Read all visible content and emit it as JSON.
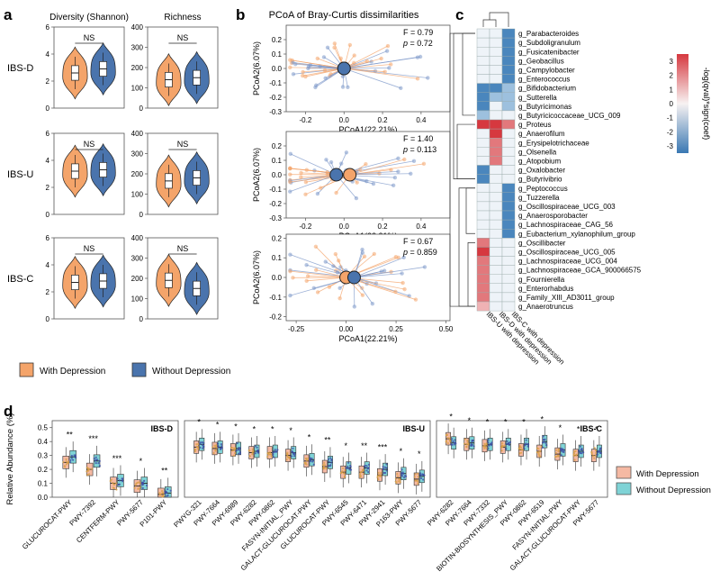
{
  "colors": {
    "dep_fill": "#f4a46a",
    "dep_dark": "#e07b39",
    "nodep_fill": "#4a74ad",
    "nodep_dark": "#2a5590",
    "d_dep": "#f5b9a3",
    "d_nodep": "#7fd3d6",
    "heat_pos": "#d94e52",
    "heat_neg": "#4b86bd",
    "heat_light": "#f2c9c9",
    "heat_blue_light": "#c3d8ea"
  },
  "panel_labels": {
    "a": "a",
    "b": "b",
    "c": "c",
    "d": "d"
  },
  "legend_a": {
    "with": "With Depression",
    "without": "Without Depression"
  },
  "legend_d": {
    "with": "With Depression",
    "without": "Without Depression"
  },
  "chart_data": [
    {
      "id": "a",
      "type": "violin",
      "columns": [
        "Diversity (Shannon)",
        "Richness"
      ],
      "rows": [
        "IBS-D",
        "IBS-U",
        "IBS-C"
      ],
      "sig_label": "NS",
      "shannon": {
        "yticks": [
          0,
          2,
          4,
          6
        ],
        "ylim": [
          0,
          6
        ],
        "median": {
          "IBS-D": [
            2.6,
            2.9
          ],
          "IBS-U": [
            3.2,
            3.3
          ],
          "IBS-C": [
            2.7,
            2.8
          ]
        }
      },
      "richness": {
        "yticks": [
          0,
          100,
          200,
          300,
          400
        ],
        "ylim": [
          0,
          400
        ],
        "median": {
          "IBS-D": [
            140,
            150
          ],
          "IBS-U": [
            165,
            180
          ],
          "IBS-C": [
            190,
            150
          ]
        }
      }
    },
    {
      "id": "b",
      "type": "scatter",
      "title": "PCoA of Bray-Curtis dissimilarities",
      "xlabel": "PCoA1(22.21%)",
      "ylabel": "PCoA2(6.07%)",
      "subplots": [
        {
          "F": "F = 0.79",
          "p": "= 0.72",
          "xlim": [
            -0.3,
            0.55
          ],
          "ylim": [
            -0.3,
            0.3
          ],
          "xticks": [
            "-0.2",
            "0.0",
            "0.2",
            "0.4"
          ],
          "yticks": [
            "0.2",
            "0.1",
            "0.0",
            "-0.1",
            "-0.2",
            "-0.3"
          ],
          "centroids": {
            "dep": [
              0.0,
              0.0
            ],
            "nodep": [
              0.0,
              0.0
            ]
          }
        },
        {
          "F": "F = 1.40",
          "p": "= 0.113",
          "xlim": [
            -0.3,
            0.55
          ],
          "ylim": [
            -0.3,
            0.3
          ],
          "xticks": [
            "-0.2",
            "0.0",
            "0.2",
            "0.4"
          ],
          "yticks": [
            "0.2",
            "0.1",
            "0.0",
            "-0.1",
            "-0.2",
            "-0.3"
          ],
          "centroids": {
            "dep": [
              0.03,
              0.0
            ],
            "nodep": [
              -0.04,
              0.0
            ]
          }
        },
        {
          "F": "F = 0.67",
          "p": "= 0.859",
          "xlim": [
            -0.3,
            0.52
          ],
          "ylim": [
            -0.22,
            0.22
          ],
          "xticks": [
            "-0.25",
            "0.00",
            "0.25",
            "0.50"
          ],
          "yticks": [
            "0.2",
            "0.1",
            "0.0",
            "-0.1",
            "-0.2"
          ],
          "centroids": {
            "dep": [
              0.0,
              0.0
            ],
            "nodep": [
              0.04,
              0.0
            ]
          }
        }
      ]
    },
    {
      "id": "c",
      "type": "heatmap",
      "columns": [
        "IBS-U with depression",
        "IBS-D with depression",
        "IBS-C with depression"
      ],
      "rows": [
        "g_Parabacteroides",
        "g_Subdoligranulum",
        "g_Fusicatenibacter",
        "g_Geobacillus",
        "g_Campylobacter",
        "g_Enterococcus",
        "g_Bifidobacterium",
        "g_Sutterella",
        "g_Butyricimonas",
        "g_Butyricicoccaceae_UCG_009",
        "g_Proteus",
        "g_Anaerofilum",
        "g_Erysipelotrichaceae",
        "g_Olsenella",
        "g_Atopobium",
        "g_Oxalobacter",
        "g_Butyrivibrio",
        "g_Peptococcus",
        "g_Tuzzerella",
        "g_Oscillospiraceae_UCG_003",
        "g_Anaerosporobacter",
        "g_Lachnospiraceae_CAG_56",
        "g_Eubacterium_xylanophilum_group",
        "g_Oscillibacter",
        "g_Oscillospiraceae_UCG_005",
        "g_Lachnospiraceae_UCG_004",
        "g_Lachnospiraceae_GCA_900066575",
        "g_Fournierella",
        "g_Enterorhabdus",
        "g_Family_XIII_AD3011_group",
        "g_Anaerotruncus"
      ],
      "values": [
        [
          0,
          0,
          -2
        ],
        [
          0,
          0,
          -2
        ],
        [
          0,
          0,
          -2
        ],
        [
          0,
          0,
          -2
        ],
        [
          0,
          0,
          -2
        ],
        [
          0,
          0,
          -2
        ],
        [
          -2,
          -2,
          -1
        ],
        [
          -2,
          -1,
          -1
        ],
        [
          -2,
          0,
          -1
        ],
        [
          -1,
          0,
          0
        ],
        [
          3,
          3,
          2
        ],
        [
          0,
          3,
          0
        ],
        [
          0,
          2,
          0
        ],
        [
          0,
          2,
          0
        ],
        [
          0,
          2,
          0
        ],
        [
          -2,
          0,
          0
        ],
        [
          -2,
          0,
          0
        ],
        [
          0,
          0,
          -2
        ],
        [
          0,
          0,
          -2
        ],
        [
          0,
          0,
          -2
        ],
        [
          0,
          0,
          -2
        ],
        [
          0,
          0,
          -2
        ],
        [
          0,
          0,
          -2
        ],
        [
          2,
          0,
          0
        ],
        [
          3,
          0,
          0
        ],
        [
          2,
          0,
          0
        ],
        [
          2,
          0,
          0
        ],
        [
          2,
          0,
          0
        ],
        [
          2,
          0,
          0
        ],
        [
          2,
          0,
          0
        ],
        [
          1,
          0,
          0
        ]
      ],
      "colorbar": {
        "label": "-log(qval)*sign(coef)",
        "ticks": [
          "3",
          "2",
          "1",
          "0",
          "-1",
          "-2",
          "-3"
        ],
        "range": [
          -3.5,
          3.5
        ]
      }
    },
    {
      "id": "d",
      "type": "box",
      "ylabel": "Relative Abundance (%)",
      "yticks": [
        "0.0",
        "0.1",
        "0.2",
        "0.3",
        "0.4",
        "0.5"
      ],
      "ylim": [
        0,
        0.55
      ],
      "groups": [
        {
          "title": "IBS-D",
          "categories": [
            "GLUCUROCAT-PWY",
            "PWY-7392",
            "CENTFERM-PWY",
            "PWY-5677",
            "P101-PWY"
          ],
          "sig": [
            "**",
            "***",
            "***",
            "*",
            "**"
          ],
          "dep": [
            0.25,
            0.2,
            0.1,
            0.08,
            0.02
          ],
          "nodep": [
            0.29,
            0.26,
            0.12,
            0.1,
            0.03
          ]
        },
        {
          "title": "IBS-U",
          "categories": [
            "PWYG-321",
            "PWY-7664",
            "PWY-6989",
            "PWY-6282",
            "PWY-0862",
            "FASYN-INITIAL_PWY",
            "GALACT-GLUCUROCAT-PWY",
            "GLUCUROCAT-PWY",
            "PWY-6545",
            "PWY-6471",
            "PWY-2941",
            "P163-PWY",
            "PWY-5677"
          ],
          "sig": [
            "*",
            "*",
            "*",
            "*",
            "*",
            "*",
            "*",
            "**",
            "*",
            "**",
            "***",
            "*",
            "*"
          ],
          "dep": [
            0.36,
            0.35,
            0.34,
            0.32,
            0.32,
            0.3,
            0.26,
            0.22,
            0.18,
            0.18,
            0.16,
            0.14,
            0.13
          ],
          "nodep": [
            0.38,
            0.36,
            0.35,
            0.33,
            0.33,
            0.32,
            0.27,
            0.25,
            0.21,
            0.21,
            0.2,
            0.17,
            0.15
          ]
        },
        {
          "title": "IBS-C",
          "categories": [
            "PWY-6282",
            "PWY-7664",
            "PWY-7332",
            "BIOTIN-BIOSYNTHESIS_PWY",
            "PWY-0862",
            "PWY-6519",
            "FASYN-INITIAL-PWY",
            "GALACT-GLUCUROCAT-PWY",
            "PWY-5677"
          ],
          "sig": [
            "*",
            "*",
            "*",
            "*",
            "*",
            "*",
            "*",
            "*",
            "*"
          ],
          "dep": [
            0.42,
            0.38,
            0.37,
            0.36,
            0.34,
            0.33,
            0.31,
            0.3,
            0.3
          ],
          "nodep": [
            0.39,
            0.39,
            0.38,
            0.38,
            0.38,
            0.4,
            0.34,
            0.33,
            0.33
          ]
        }
      ]
    }
  ]
}
